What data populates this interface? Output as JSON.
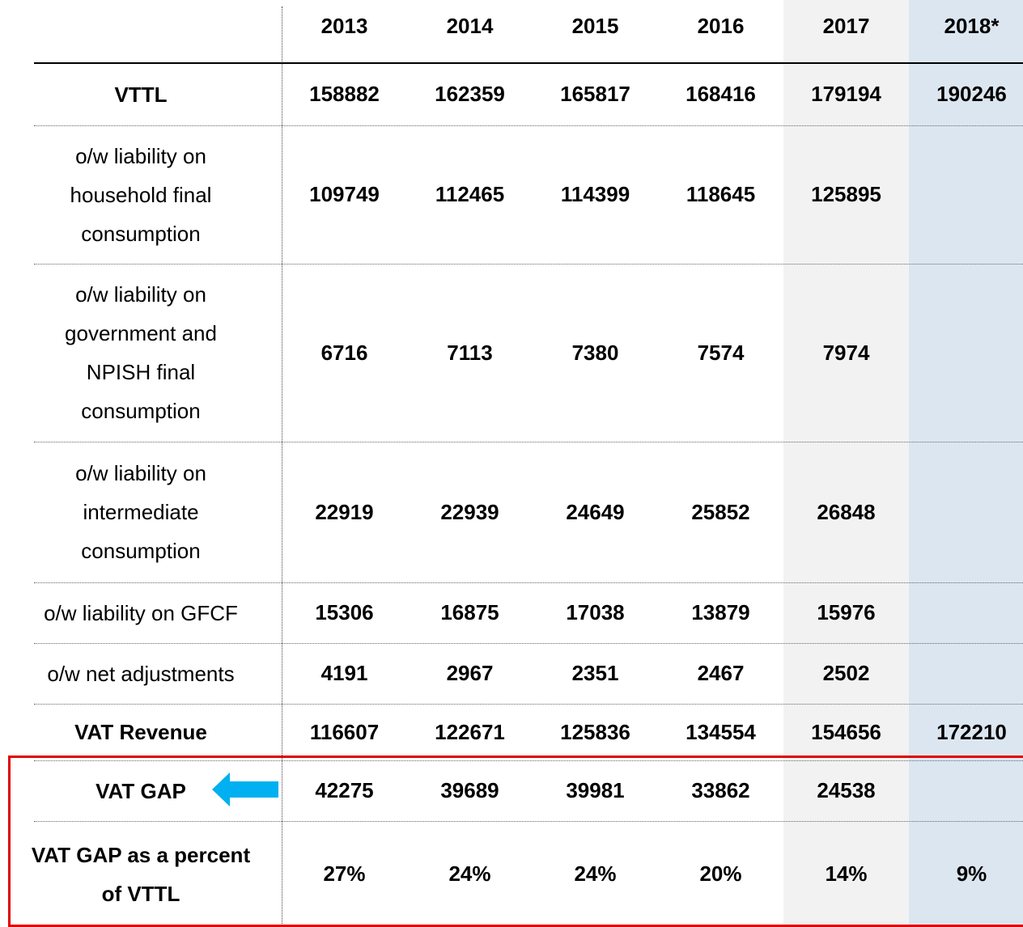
{
  "table": {
    "columns": [
      "2013",
      "2014",
      "2015",
      "2016",
      "2017",
      "2018*"
    ],
    "rows": [
      {
        "label": [
          "VTTL"
        ],
        "bold": true,
        "values": [
          "158882",
          "162359",
          "165817",
          "168416",
          "179194",
          "190246"
        ]
      },
      {
        "label": [
          "o/w liability on",
          "household final",
          "consumption"
        ],
        "bold": false,
        "values": [
          "109749",
          "112465",
          "114399",
          "118645",
          "125895",
          null
        ]
      },
      {
        "label": [
          "o/w liability on",
          "government and",
          "NPISH final",
          "consumption"
        ],
        "bold": false,
        "values": [
          "6716",
          "7113",
          "7380",
          "7574",
          "7974",
          null
        ]
      },
      {
        "label": [
          "o/w liability on",
          "intermediate",
          "consumption"
        ],
        "bold": false,
        "values": [
          "22919",
          "22939",
          "24649",
          "25852",
          "26848",
          null
        ]
      },
      {
        "label": [
          "o/w liability on GFCF"
        ],
        "bold": false,
        "values": [
          "15306",
          "16875",
          "17038",
          "13879",
          "15976",
          null
        ]
      },
      {
        "label": [
          "o/w net adjustments"
        ],
        "bold": false,
        "values": [
          "4191",
          "2967",
          "2351",
          "2467",
          "2502",
          null
        ]
      },
      {
        "label": [
          "VAT Revenue"
        ],
        "bold": true,
        "values": [
          "116607",
          "122671",
          "125836",
          "134554",
          "154656",
          "172210"
        ]
      },
      {
        "label": [
          "VAT GAP"
        ],
        "bold": true,
        "values": [
          "42275",
          "39689",
          "39981",
          "33862",
          "24538",
          null
        ]
      },
      {
        "label": [
          "VAT GAP as a percent",
          "of VTTL"
        ],
        "bold": true,
        "values": [
          "27%",
          "24%",
          "24%",
          "20%",
          "14%",
          "9%"
        ]
      }
    ]
  }
}
